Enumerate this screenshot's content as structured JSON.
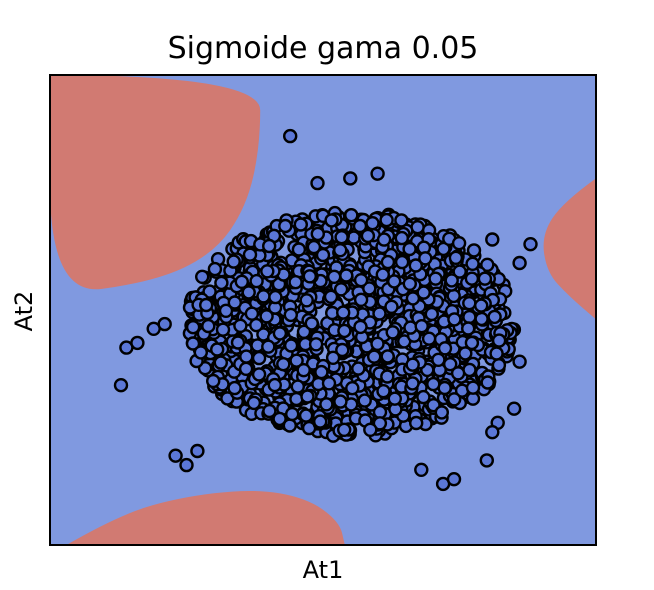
{
  "chart_data": {
    "type": "scatter",
    "title": "Sigmoide gama 0.05",
    "xlabel": "At1",
    "ylabel": "At2",
    "xticks": [],
    "yticks": [],
    "xlim": [
      0,
      1
    ],
    "ylim": [
      0,
      1
    ],
    "grid": false,
    "legend": "none",
    "colors": {
      "region_majority": "#8099e0",
      "region_minority": "#d17a72",
      "point_fill": "#5b77d6",
      "point_stroke": "#000000"
    },
    "decision_regions": [
      {
        "name": "top-left",
        "class": "minority",
        "boundary": [
          [
            0.0,
            1.0
          ],
          [
            0.385,
            1.0
          ],
          [
            0.385,
            0.85
          ],
          [
            0.36,
            0.72
          ],
          [
            0.3,
            0.62
          ],
          [
            0.19,
            0.56
          ],
          [
            0.0,
            0.53
          ],
          [
            0.0,
            1.0
          ]
        ]
      },
      {
        "name": "right",
        "class": "minority",
        "boundary": [
          [
            1.0,
            0.78
          ],
          [
            0.94,
            0.73
          ],
          [
            0.9,
            0.66
          ],
          [
            0.91,
            0.58
          ],
          [
            0.95,
            0.53
          ],
          [
            1.0,
            0.48
          ]
        ]
      },
      {
        "name": "bottom",
        "class": "minority",
        "boundary": [
          [
            0.03,
            0.0
          ],
          [
            0.12,
            0.06
          ],
          [
            0.23,
            0.1
          ],
          [
            0.37,
            0.12
          ],
          [
            0.47,
            0.1
          ],
          [
            0.53,
            0.05
          ],
          [
            0.54,
            0.0
          ]
        ]
      }
    ],
    "outliers": [
      {
        "x": 0.44,
        "y": 0.87
      },
      {
        "x": 0.49,
        "y": 0.77
      },
      {
        "x": 0.55,
        "y": 0.78
      },
      {
        "x": 0.6,
        "y": 0.79
      },
      {
        "x": 0.13,
        "y": 0.34
      },
      {
        "x": 0.14,
        "y": 0.42
      },
      {
        "x": 0.16,
        "y": 0.43
      },
      {
        "x": 0.19,
        "y": 0.46
      },
      {
        "x": 0.21,
        "y": 0.47
      },
      {
        "x": 0.86,
        "y": 0.39
      },
      {
        "x": 0.85,
        "y": 0.29
      },
      {
        "x": 0.82,
        "y": 0.26
      },
      {
        "x": 0.81,
        "y": 0.24
      },
      {
        "x": 0.8,
        "y": 0.18
      },
      {
        "x": 0.72,
        "y": 0.13
      },
      {
        "x": 0.74,
        "y": 0.14
      },
      {
        "x": 0.68,
        "y": 0.16
      },
      {
        "x": 0.23,
        "y": 0.19
      },
      {
        "x": 0.25,
        "y": 0.17
      },
      {
        "x": 0.27,
        "y": 0.2
      },
      {
        "x": 0.86,
        "y": 0.6
      },
      {
        "x": 0.88,
        "y": 0.64
      },
      {
        "x": 0.81,
        "y": 0.65
      }
    ],
    "cluster": {
      "points": 1500,
      "x_range": [
        0.24,
        0.86
      ],
      "y_range": [
        0.22,
        0.72
      ],
      "center": [
        0.55,
        0.47
      ]
    }
  }
}
